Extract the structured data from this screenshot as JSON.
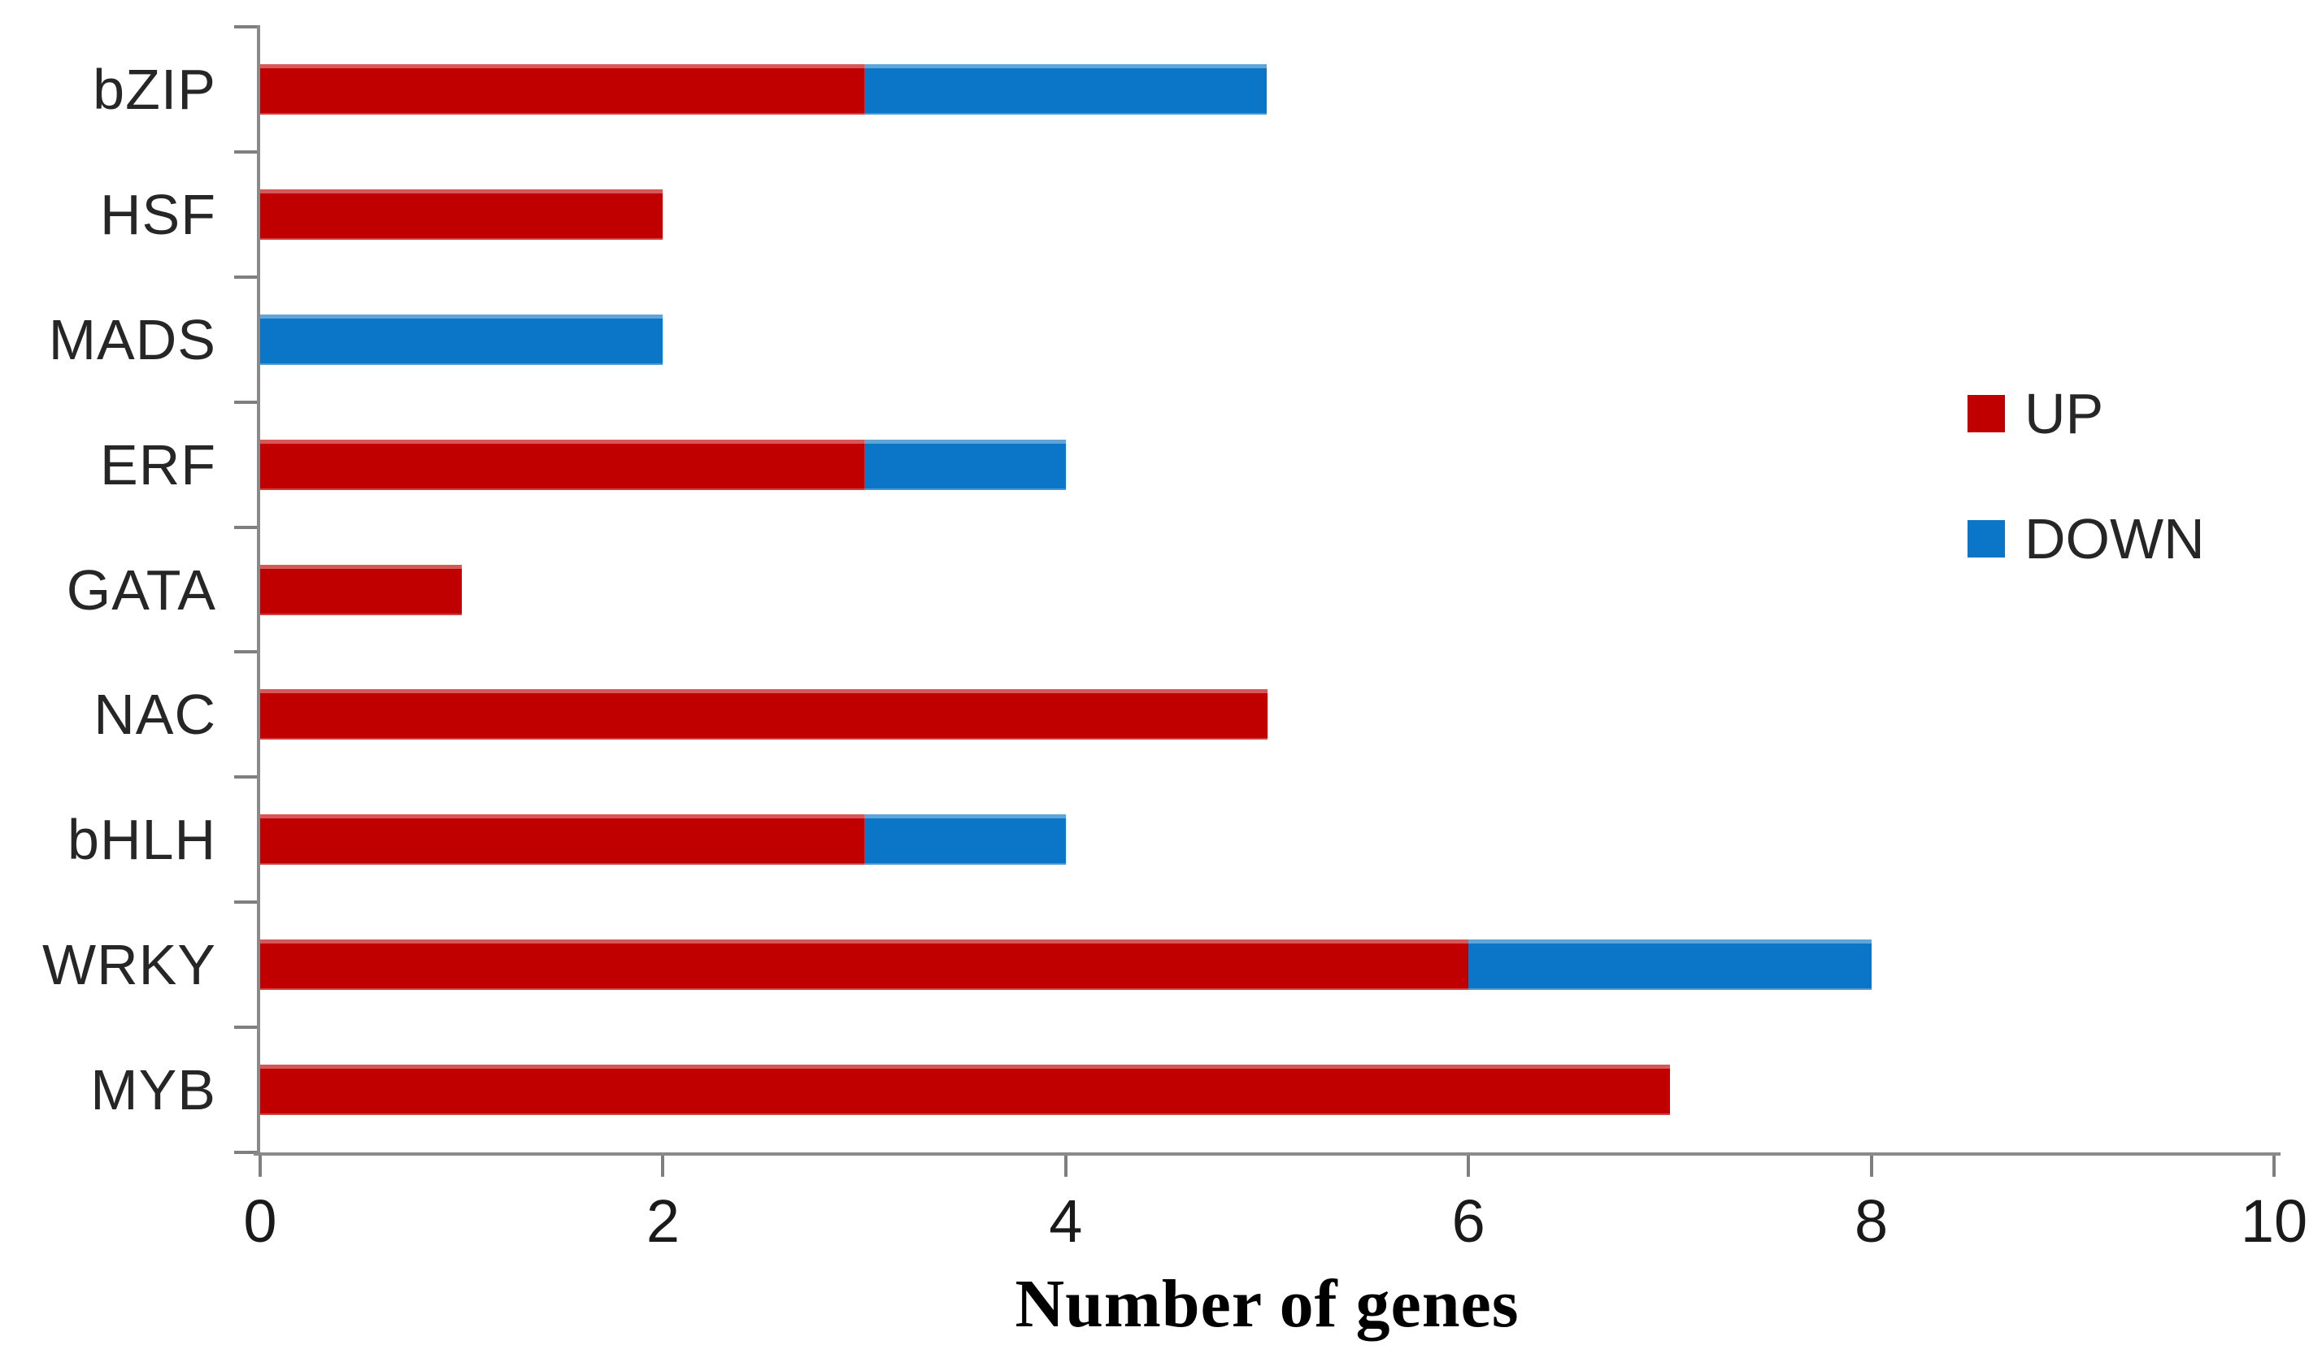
{
  "chart_data": {
    "type": "bar",
    "orientation": "horizontal",
    "stacked": true,
    "title": "",
    "xlabel": "Number of genes",
    "ylabel": "",
    "categories": [
      "bZIP",
      "HSF",
      "MADS",
      "ERF",
      "GATA",
      "NAC",
      "bHLH",
      "WRKY",
      "MYB"
    ],
    "series": [
      {
        "name": "UP",
        "color": "#c00000",
        "values": [
          3,
          2,
          0,
          3,
          1,
          5,
          3,
          6,
          7
        ]
      },
      {
        "name": "DOWN",
        "color": "#0b76c7",
        "values": [
          2,
          0,
          2,
          1,
          0,
          0,
          1,
          2,
          0
        ]
      }
    ],
    "xlim": [
      0,
      10
    ],
    "xticks": [
      0,
      2,
      4,
      6,
      8,
      10
    ],
    "grid": false,
    "legend_position": "center-right",
    "axis_color": "#8a8a8a"
  }
}
